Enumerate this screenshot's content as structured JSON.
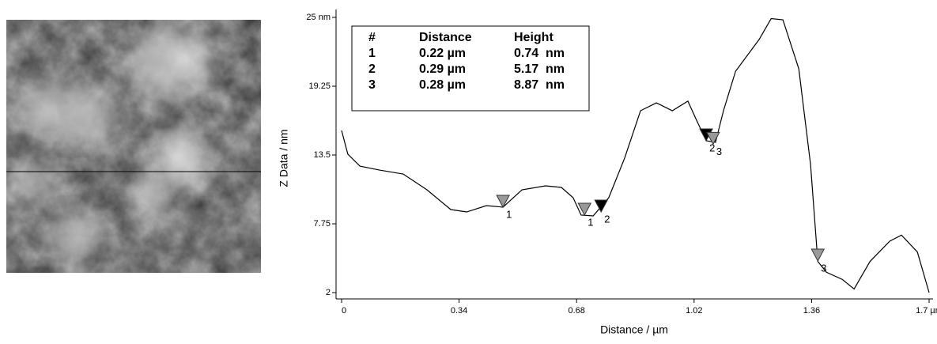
{
  "chart_data": {
    "type": "line",
    "x_label": "Distance / µm",
    "y_label": "Z Data / nm",
    "xlim": [
      0,
      1.7
    ],
    "ylim": [
      2,
      25
    ],
    "xticks": [
      0,
      0.34,
      0.68,
      1.02,
      1.36,
      {
        "value": 1.7,
        "label": "1.7 µm"
      }
    ],
    "yticks": [
      2,
      7.75,
      13.5,
      19.25,
      {
        "value": 25,
        "label": "25 nm"
      }
    ],
    "series": [
      {
        "color": "#000000",
        "x": [
          0,
          0.018,
          0.053,
          0.11,
          0.178,
          0.247,
          0.316,
          0.362,
          0.419,
          0.467,
          0.522,
          0.59,
          0.636,
          0.67,
          0.693,
          0.728,
          0.773,
          0.819,
          0.865,
          0.911,
          0.957,
          1.002,
          1.025,
          1.055,
          1.082,
          1.105,
          1.14,
          1.208,
          1.243,
          1.277,
          1.323,
          1.357,
          1.378,
          1.403,
          1.449,
          1.483,
          1.529,
          1.586,
          1.62,
          1.666,
          1.7
        ],
        "y": [
          15.55,
          13.57,
          12.57,
          12.24,
          11.91,
          10.59,
          8.94,
          8.74,
          9.27,
          9.14,
          10.59,
          10.92,
          10.79,
          9.93,
          8.48,
          8.41,
          9.93,
          13.24,
          17.2,
          17.86,
          17.2,
          18.0,
          16.54,
          14.69,
          14.56,
          17.2,
          20.5,
          23.15,
          24.9,
          24.8,
          20.7,
          12.7,
          4.6,
          3.7,
          3.1,
          2.3,
          4.6,
          6.3,
          6.8,
          5.4,
          2.0
        ]
      }
    ],
    "markers": [
      {
        "x": 0.467,
        "y": 9.14,
        "label": "1",
        "color": "#999999"
      },
      {
        "x": 0.703,
        "y": 8.48,
        "label": "1",
        "color": "#999999"
      },
      {
        "x": 0.751,
        "y": 8.74,
        "label": "2",
        "color": "#000000"
      },
      {
        "x": 1.055,
        "y": 14.69,
        "label": "2",
        "color": "#000000"
      },
      {
        "x": 1.075,
        "y": 14.4,
        "label": "3",
        "color": "#999999"
      },
      {
        "x": 1.378,
        "y": 4.64,
        "label": "3",
        "color": "#999999"
      }
    ],
    "table": {
      "header": [
        "#",
        "Distance",
        "Height"
      ],
      "rows": [
        [
          "1",
          "0.22 µm",
          "0.74  nm"
        ],
        [
          "2",
          "0.29 µm",
          "5.17  nm"
        ],
        [
          "3",
          "0.28 µm",
          "8.87  nm"
        ]
      ]
    }
  }
}
